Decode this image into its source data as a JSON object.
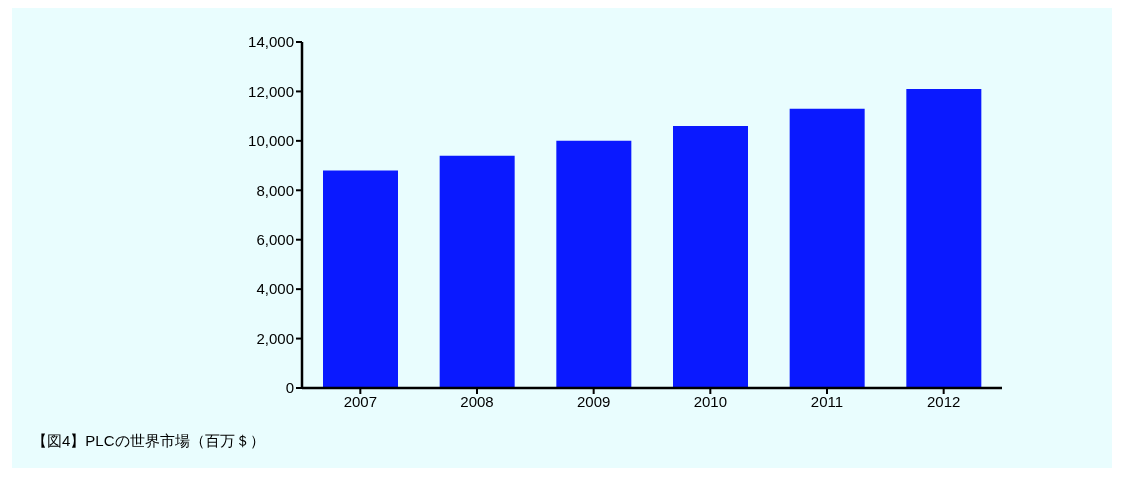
{
  "chart_data": {
    "type": "bar",
    "categories": [
      "2007",
      "2008",
      "2009",
      "2010",
      "2011",
      "2012"
    ],
    "values": [
      8800,
      9400,
      10000,
      10600,
      11300,
      12100
    ],
    "color": "#0a19ff",
    "ylim": [
      0,
      14000
    ],
    "yticks": [
      0,
      {
        "value": 2000,
        "label": "2,000"
      },
      {
        "value": 4000,
        "label": "4,000"
      },
      {
        "value": 6000,
        "label": "6,000"
      },
      {
        "value": 8000,
        "label": "8,000"
      },
      {
        "value": 10000,
        "label": "10,000"
      },
      {
        "value": 12000,
        "label": "12,000"
      },
      {
        "value": 14000,
        "label": "14,000"
      }
    ],
    "grid": false,
    "annotations": [
      "【図4】PLCの世界市場（百万＄）"
    ]
  }
}
